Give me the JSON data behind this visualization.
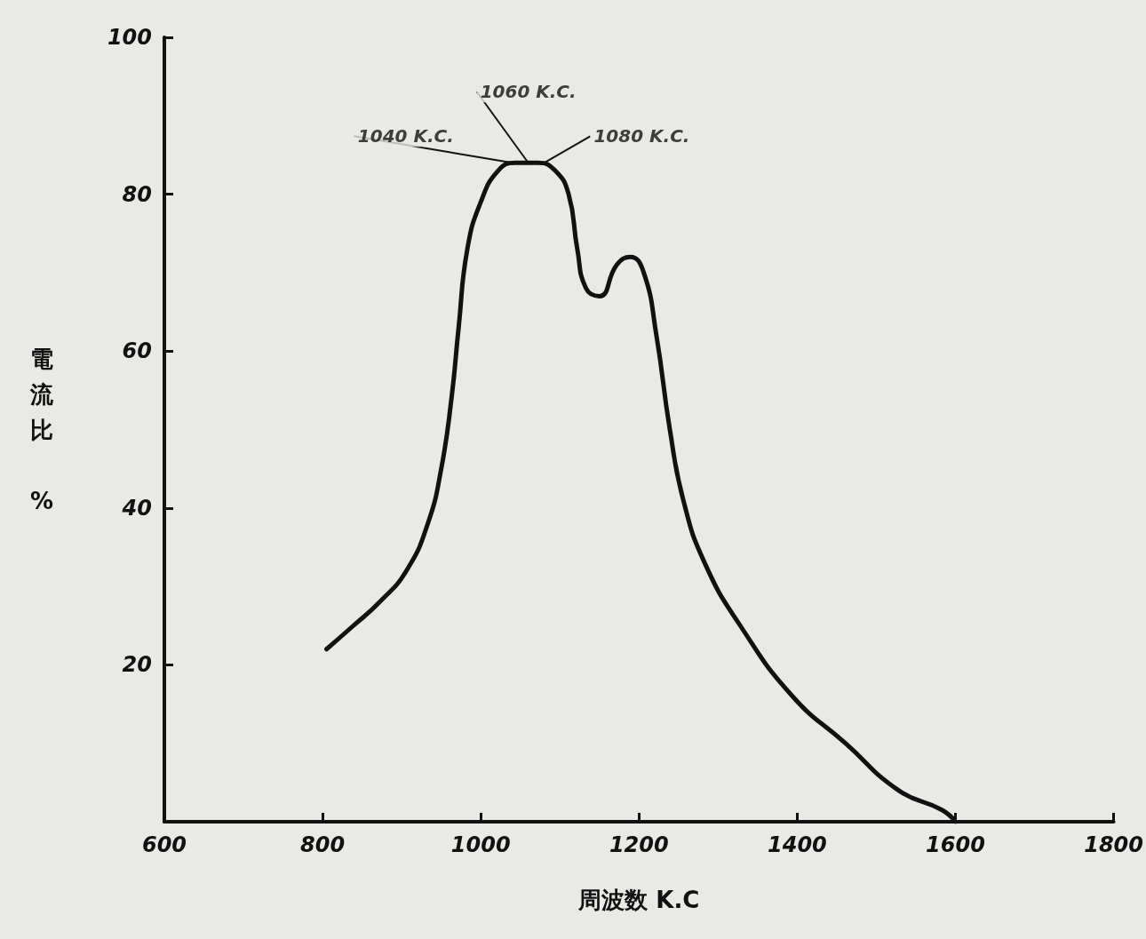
{
  "chart_data": {
    "type": "line",
    "xlabel": "周波数 K.C",
    "ylabel": "電流比 %",
    "xlim": [
      600,
      1800
    ],
    "xticks": [
      600,
      800,
      1000,
      1200,
      1400,
      1600,
      1800
    ],
    "ylim": [
      0,
      100
    ],
    "yticks": [
      20,
      40,
      60,
      80,
      100
    ],
    "grid": false,
    "marker": "none",
    "line_style": "solid",
    "series": [
      {
        "color": "#111111",
        "x": [
          805,
          839,
          872,
          906,
          933,
          950,
          963,
          972,
          983,
          1000,
          1022,
          1044,
          1072,
          1094,
          1111,
          1122,
          1133,
          1150,
          1172,
          1189,
          1206,
          1222,
          1239,
          1256,
          1283,
          1328,
          1394,
          1461,
          1528,
          1583,
          1600
        ],
        "values": [
          22,
          25,
          28,
          32,
          38,
          45,
          54,
          63,
          73,
          79,
          83,
          84,
          84,
          83,
          80,
          73,
          68,
          67,
          71,
          72,
          70,
          62,
          50,
          41,
          33,
          25,
          16,
          10,
          4,
          1.5,
          0
        ]
      }
    ],
    "annotations": [
      {
        "text": "1040 K.C.",
        "x": 1040,
        "y": 84
      },
      {
        "text": "1060 K.C.",
        "x": 1060,
        "y": 84
      },
      {
        "text": "1080 K.C.",
        "x": 1080,
        "y": 84
      }
    ]
  }
}
